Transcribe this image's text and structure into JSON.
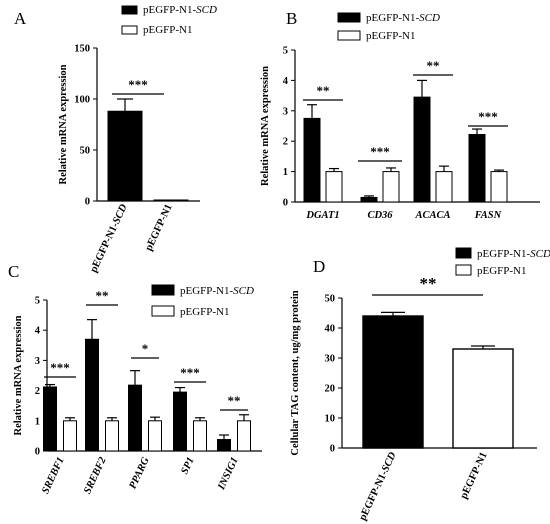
{
  "chart_data": [
    {
      "panel": "A",
      "type": "bar",
      "categories": [
        "pEGFP-N1-SCD",
        "pEGFP-N1"
      ],
      "category_labels": [
        [
          {
            "t": "pEGFP-N1-",
            "i": false
          },
          {
            "t": "SCD",
            "i": true
          }
        ],
        [
          {
            "t": "pEGFP-N1",
            "i": false
          }
        ]
      ],
      "series": [
        {
          "name": "pEGFP-N1-SCD",
          "values": [
            88,
            1
          ],
          "errors": [
            12,
            0.5
          ],
          "fill": "#000000"
        }
      ],
      "ylabel": "Relative mRNA expression",
      "ylim": [
        0,
        150
      ],
      "yticks": [
        0,
        50,
        100,
        150
      ],
      "significance": [
        {
          "group": 0,
          "label": "***"
        }
      ],
      "legend": [
        "pEGFP-N1-SCD",
        "pEGFP-N1"
      ],
      "legend_labels": [
        [
          {
            "t": "pEGFP-N1-",
            "i": false
          },
          {
            "t": "SCD",
            "i": true
          }
        ],
        [
          {
            "t": "pEGFP-N1",
            "i": false
          }
        ]
      ]
    },
    {
      "panel": "B",
      "type": "bar",
      "categories": [
        "DGAT1",
        "CD36",
        "ACACA",
        "FASN"
      ],
      "series": [
        {
          "name": "pEGFP-N1-SCD",
          "values": [
            2.75,
            0.15,
            3.45,
            2.22
          ],
          "errors": [
            0.45,
            0.05,
            0.55,
            0.18
          ]
        },
        {
          "name": "pEGFP-N1",
          "values": [
            1.0,
            1.0,
            1.0,
            1.0
          ],
          "errors": [
            0.1,
            0.12,
            0.18,
            0.05
          ]
        }
      ],
      "ylabel": "Relative mRNA expression",
      "ylim": [
        0,
        5
      ],
      "yticks": [
        0,
        1,
        2,
        3,
        4,
        5
      ],
      "significance": [
        "**",
        "***",
        "**",
        "***"
      ],
      "legend_labels": [
        [
          {
            "t": "pEGFP-N1-",
            "i": false
          },
          {
            "t": "SCD",
            "i": true
          }
        ],
        [
          {
            "t": "pEGFP-N1",
            "i": false
          }
        ]
      ]
    },
    {
      "panel": "C",
      "type": "bar",
      "categories": [
        "SREBF1",
        "SREBF2",
        "PPARG",
        "SP1",
        "INSIG1"
      ],
      "series": [
        {
          "name": "pEGFP-N1-SCD",
          "values": [
            2.12,
            3.7,
            2.18,
            1.95,
            0.38
          ],
          "errors": [
            0.08,
            0.65,
            0.48,
            0.15,
            0.15
          ]
        },
        {
          "name": "pEGFP-N1",
          "values": [
            1.0,
            1.0,
            1.0,
            1.0,
            1.0
          ],
          "errors": [
            0.1,
            0.1,
            0.12,
            0.1,
            0.2
          ]
        }
      ],
      "ylabel": "Relative mRNA expression",
      "ylim": [
        0,
        5
      ],
      "yticks": [
        0,
        1,
        2,
        3,
        4,
        5
      ],
      "significance": [
        "***",
        "**",
        "*",
        "***",
        "**"
      ],
      "legend_labels": [
        [
          {
            "t": "pEGFP-N1-",
            "i": false
          },
          {
            "t": "SCD",
            "i": true
          }
        ],
        [
          {
            "t": "pEGFP-N1",
            "i": false
          }
        ]
      ]
    },
    {
      "panel": "D",
      "type": "bar",
      "categories": [
        "pEGFP-N1-SCD",
        "pEGFP-N1"
      ],
      "category_labels": [
        [
          {
            "t": "pEGFP-N1-",
            "i": false
          },
          {
            "t": "SCD",
            "i": true
          }
        ],
        [
          {
            "t": "pEGFP-N1",
            "i": false
          }
        ]
      ],
      "series": [
        {
          "name": "pEGFP-N1-SCD",
          "values": [
            44,
            33
          ],
          "errors": [
            1.2,
            1.0
          ]
        }
      ],
      "ylabel": "Cellular TAG content, ug/mg protein",
      "ylim": [
        0,
        50
      ],
      "yticks": [
        0,
        10,
        20,
        30,
        40,
        50
      ],
      "significance": [
        {
          "group": 0,
          "label": "**"
        }
      ],
      "legend_labels": [
        [
          {
            "t": "pEGFP-N1-",
            "i": false
          },
          {
            "t": "SCD",
            "i": true
          }
        ],
        [
          {
            "t": "pEGFP-N1",
            "i": false
          }
        ]
      ]
    }
  ]
}
